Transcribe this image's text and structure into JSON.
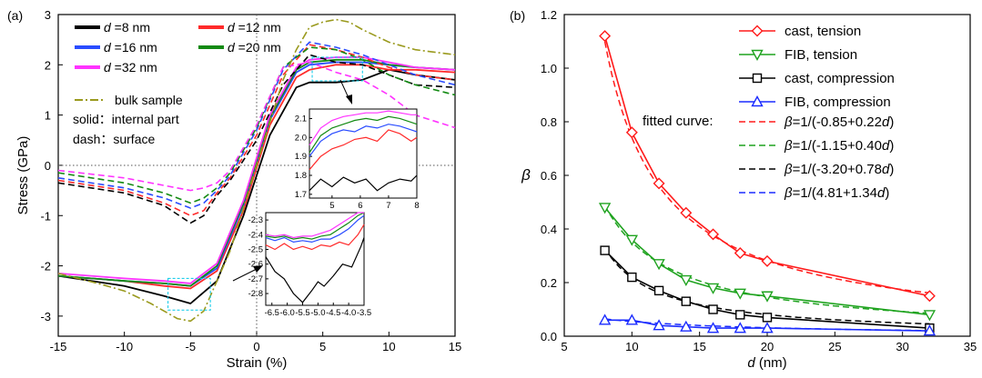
{
  "panels": {
    "a": "(a)",
    "b": "(b)"
  },
  "chart_data": [
    {
      "type": "line",
      "panel": "(a)",
      "xlabel": "Strain (%)",
      "ylabel": "Stress (GPa)",
      "xlim": [
        -15,
        15
      ],
      "ylim": [
        -3.4,
        3
      ],
      "xticks": [
        -15,
        -10,
        -5,
        0,
        5,
        10,
        15
      ],
      "yticks": [
        -3,
        -2,
        -1,
        0,
        1,
        2,
        3
      ],
      "legend": [
        {
          "prefix": "d",
          "text": " =8 nm",
          "color": "#000000"
        },
        {
          "prefix": "d",
          "text": " =12 nm",
          "color": "#ff2a2a"
        },
        {
          "prefix": "d",
          "text": " =16 nm",
          "color": "#2a4cff"
        },
        {
          "prefix": "d",
          "text": " =20 nm",
          "color": "#138a13"
        },
        {
          "prefix": "d",
          "text": " =32 nm",
          "color": "#ff33ff"
        }
      ],
      "notes": [
        "bulk sample",
        "solid：internal part",
        "dash：surface"
      ],
      "bulk_color": "#9a9a1e",
      "series": [
        {
          "name": "d =8 nm",
          "color": "#000000",
          "style": "solid",
          "x": [
            -15,
            -10,
            -7,
            -5,
            -3,
            -1,
            1,
            3,
            4,
            6,
            8,
            10,
            12,
            15
          ],
          "y": [
            -2.2,
            -2.4,
            -2.6,
            -2.75,
            -2.3,
            -1.0,
            0.6,
            1.55,
            1.65,
            1.65,
            1.7,
            1.9,
            1.8,
            1.7
          ]
        },
        {
          "name": "d =12 nm",
          "color": "#ff2a2a",
          "style": "solid",
          "x": [
            -15,
            -10,
            -7,
            -5,
            -3,
            -1,
            1,
            3,
            4,
            6,
            8,
            10,
            12,
            15
          ],
          "y": [
            -2.2,
            -2.3,
            -2.4,
            -2.45,
            -2.1,
            -0.9,
            0.8,
            1.75,
            1.9,
            2.0,
            2.0,
            1.9,
            1.9,
            1.85
          ]
        },
        {
          "name": "d =16 nm",
          "color": "#2a4cff",
          "style": "solid",
          "x": [
            -15,
            -10,
            -7,
            -5,
            -3,
            -1,
            1,
            3,
            4,
            6,
            8,
            10,
            12,
            15
          ],
          "y": [
            -2.2,
            -2.3,
            -2.35,
            -2.4,
            -2.05,
            -0.8,
            0.9,
            1.85,
            2.0,
            2.05,
            2.05,
            2.0,
            1.95,
            1.9
          ]
        },
        {
          "name": "d =20 nm",
          "color": "#138a13",
          "style": "solid",
          "x": [
            -15,
            -10,
            -7,
            -5,
            -3,
            -1,
            1,
            3,
            4,
            6,
            8,
            10,
            12,
            15
          ],
          "y": [
            -2.2,
            -2.3,
            -2.35,
            -2.4,
            -2.0,
            -0.75,
            0.95,
            1.9,
            2.05,
            2.1,
            2.1,
            2.0,
            1.95,
            1.9
          ]
        },
        {
          "name": "d =32 nm",
          "color": "#ff33ff",
          "style": "solid",
          "x": [
            -15,
            -10,
            -7,
            -5,
            -3,
            -1,
            1,
            3,
            4,
            6,
            8,
            10,
            12,
            15
          ],
          "y": [
            -2.15,
            -2.25,
            -2.3,
            -2.35,
            -1.95,
            -0.7,
            1.0,
            1.95,
            2.1,
            2.15,
            2.15,
            2.05,
            1.95,
            1.9
          ]
        },
        {
          "name": "d =8 nm surface",
          "color": "#000000",
          "style": "dash",
          "x": [
            -15,
            -10,
            -7,
            -5,
            -4,
            -3,
            -2,
            0,
            2,
            4,
            6,
            8,
            10,
            12,
            15
          ],
          "y": [
            -0.35,
            -0.55,
            -0.8,
            -1.15,
            -1.0,
            -0.6,
            -0.3,
            0.5,
            1.6,
            2.2,
            2.05,
            2.0,
            1.8,
            1.6,
            1.55
          ]
        },
        {
          "name": "d =12 nm surface",
          "color": "#ff2a2a",
          "style": "dash",
          "x": [
            -15,
            -10,
            -7,
            -5,
            -4,
            -3,
            -2,
            0,
            2,
            4,
            6,
            8,
            10,
            12,
            15
          ],
          "y": [
            -0.3,
            -0.5,
            -0.75,
            -1.0,
            -0.9,
            -0.55,
            -0.25,
            0.6,
            1.8,
            2.4,
            2.3,
            2.15,
            1.95,
            1.8,
            1.7
          ]
        },
        {
          "name": "d =16 nm surface",
          "color": "#2a4cff",
          "style": "dash",
          "x": [
            -15,
            -10,
            -7,
            -5,
            -4,
            -3,
            -2,
            0,
            2,
            4,
            6,
            8,
            10,
            12,
            15
          ],
          "y": [
            -0.25,
            -0.45,
            -0.65,
            -0.85,
            -0.75,
            -0.5,
            -0.2,
            0.7,
            1.9,
            2.45,
            2.35,
            2.2,
            2.0,
            1.8,
            1.6
          ]
        },
        {
          "name": "d =20 nm surface",
          "color": "#138a13",
          "style": "dash",
          "x": [
            -15,
            -10,
            -7,
            -5,
            -4,
            -3,
            -2,
            0,
            2,
            4,
            6,
            8,
            10,
            12,
            15
          ],
          "y": [
            -0.15,
            -0.35,
            -0.55,
            -0.75,
            -0.65,
            -0.45,
            -0.15,
            0.75,
            1.95,
            2.35,
            2.3,
            2.1,
            1.8,
            1.6,
            1.4
          ]
        },
        {
          "name": "d =32 nm surface",
          "color": "#ff33ff",
          "style": "dash",
          "x": [
            -15,
            -10,
            -7,
            -5,
            -4,
            -3,
            -2,
            0,
            2,
            4,
            6,
            8,
            10,
            12,
            15
          ],
          "y": [
            -0.1,
            -0.25,
            -0.4,
            -0.5,
            -0.45,
            -0.35,
            -0.1,
            0.8,
            1.95,
            2.05,
            1.85,
            1.7,
            1.4,
            1.0,
            0.75
          ]
        },
        {
          "name": "bulk sample",
          "color": "#9a9a1e",
          "style": "dashdot",
          "x": [
            -15,
            -12,
            -10,
            -8,
            -6,
            -5,
            -4,
            -3,
            -2,
            -1,
            0,
            1,
            2,
            3,
            4,
            5,
            6,
            7,
            8,
            10,
            12,
            15
          ],
          "y": [
            -2.15,
            -2.35,
            -2.5,
            -2.75,
            -3.05,
            -3.1,
            -2.9,
            -2.3,
            -1.7,
            -0.85,
            0.0,
            0.85,
            1.7,
            2.3,
            2.75,
            2.85,
            2.9,
            2.85,
            2.7,
            2.45,
            2.3,
            2.2
          ]
        }
      ],
      "inset_upper": {
        "xlim": [
          4.2,
          8
        ],
        "ylim": [
          1.68,
          2.15
        ],
        "xticks": [
          5,
          6,
          7,
          8
        ],
        "yticks": [
          1.7,
          1.8,
          1.9,
          2.0,
          2.1
        ]
      },
      "inset_lower": {
        "xlim": [
          -6.7,
          -3.5
        ],
        "ylim": [
          -2.88,
          -2.25
        ],
        "xtick_labels": [
          "-6.5",
          "-6.0",
          "-5.5",
          "-5.0",
          "-4.5",
          "-4.0",
          "-3.5"
        ],
        "xticks": [
          -6.5,
          -6.0,
          -5.5,
          -5.0,
          -4.5,
          -4.0,
          -3.5
        ],
        "yticks": [
          -2.3,
          -2.4,
          -2.5,
          -2.6,
          -2.7,
          -2.8
        ]
      }
    },
    {
      "type": "line",
      "panel": "(b)",
      "xlabel_prefix": "d",
      "xlabel": " (nm)",
      "ylabel": "β",
      "xlim": [
        5,
        35
      ],
      "ylim": [
        0,
        1.2
      ],
      "xticks": [
        5,
        10,
        15,
        20,
        25,
        30,
        35
      ],
      "yticks": [
        0.0,
        0.2,
        0.4,
        0.6,
        0.8,
        1.0,
        1.2
      ],
      "x": [
        8,
        10,
        12,
        14,
        16,
        18,
        20,
        32
      ],
      "series": [
        {
          "name": "cast, tension",
          "color": "#ff1a1a",
          "marker": "diamond",
          "values": [
            1.12,
            0.76,
            0.57,
            0.46,
            0.38,
            0.31,
            0.28,
            0.15
          ]
        },
        {
          "name": "FIB, tension",
          "color": "#1fa31f",
          "marker": "triangle-down",
          "values": [
            0.48,
            0.36,
            0.27,
            0.21,
            0.18,
            0.16,
            0.15,
            0.08
          ]
        },
        {
          "name": "cast, compression",
          "color": "#000000",
          "marker": "square",
          "values": [
            0.32,
            0.22,
            0.17,
            0.13,
            0.1,
            0.08,
            0.07,
            0.03
          ]
        },
        {
          "name": "FIB, compression",
          "color": "#1a2bff",
          "marker": "triangle-up",
          "values": [
            0.06,
            0.06,
            0.04,
            0.035,
            0.03,
            0.03,
            0.03,
            0.02
          ]
        }
      ],
      "fitted_label": "fitted curve:",
      "fits": [
        {
          "label": "=1/(-0.85+0.22",
          "color": "#ff1a1a",
          "a": -0.85,
          "b": 0.22
        },
        {
          "label": "=1/(-1.15+0.40",
          "color": "#1fa31f",
          "a": -1.15,
          "b": 0.4
        },
        {
          "label": "=1/(-3.20+0.78",
          "color": "#000000",
          "a": -3.2,
          "b": 0.78
        },
        {
          "label": "=1/(4.81+1.34",
          "color": "#1a2bff",
          "a": 4.81,
          "b": 1.34
        }
      ]
    }
  ]
}
